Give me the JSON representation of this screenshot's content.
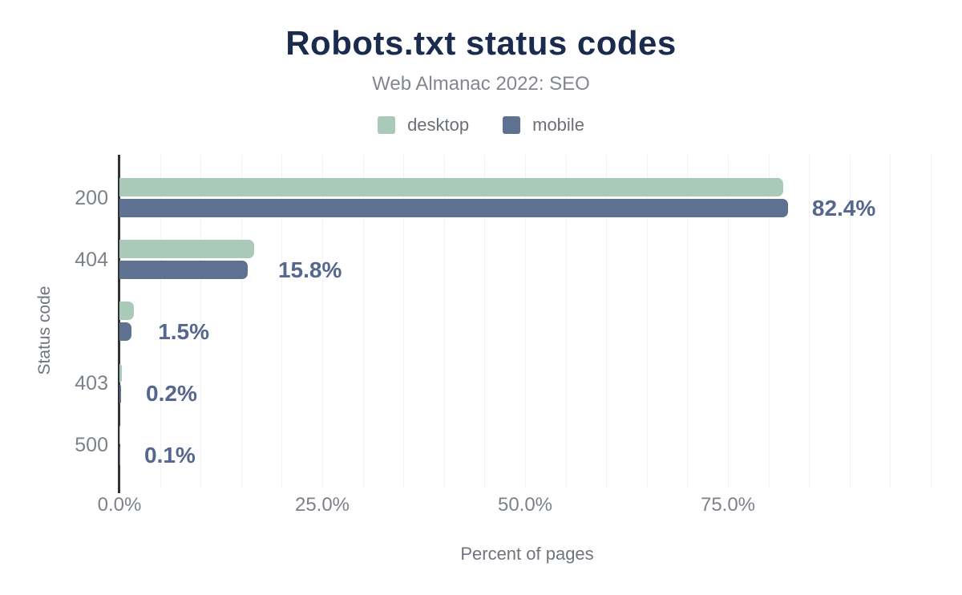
{
  "header": {
    "title": "Robots.txt status codes",
    "subtitle": "Web Almanac 2022: SEO"
  },
  "legend": [
    {
      "label": "desktop",
      "color": "#a9cab8"
    },
    {
      "label": "mobile",
      "color": "#5e7191"
    }
  ],
  "axes": {
    "xlabel": "Percent of pages",
    "ylabel": "Status code"
  },
  "chart_data": {
    "type": "bar",
    "orientation": "horizontal",
    "title": "Robots.txt status codes",
    "subtitle": "Web Almanac 2022: SEO",
    "categories": [
      "200",
      "404",
      "",
      "403",
      "500"
    ],
    "series": [
      {
        "name": "desktop",
        "color": "#a9cab8",
        "values": [
          81.8,
          16.6,
          1.8,
          0.3,
          0.1
        ]
      },
      {
        "name": "mobile",
        "color": "#5e7191",
        "values": [
          82.4,
          15.8,
          1.5,
          0.2,
          0.1
        ]
      }
    ],
    "value_labels": [
      "82.4%",
      "15.8%",
      "1.5%",
      "0.2%",
      "0.1%"
    ],
    "value_label_color": "#55678e",
    "xlabel": "Percent of pages",
    "ylabel": "Status code",
    "xlim": [
      0,
      100
    ],
    "x_ticks": [
      {
        "value": 0,
        "label": "0.0%"
      },
      {
        "value": 25,
        "label": "25.0%"
      },
      {
        "value": 50,
        "label": "50.0%"
      },
      {
        "value": 75,
        "label": "75.0%"
      }
    ],
    "grid": {
      "vertical_every": 5,
      "color": "#f1f2f4"
    },
    "legend_position": "top"
  }
}
